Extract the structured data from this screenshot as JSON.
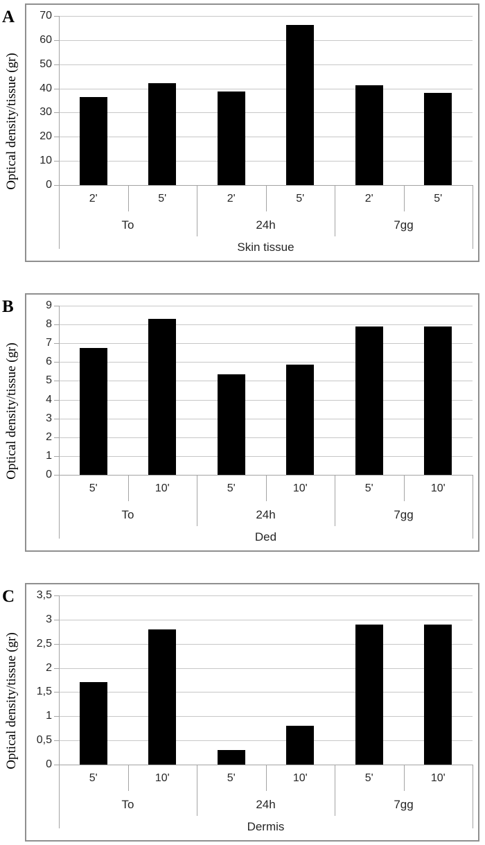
{
  "colors": {
    "background": "#ffffff",
    "bar_fill": "#000000",
    "gridline": "#c7c7c7",
    "axis_line": "#a3a3a3",
    "frame_border": "#8f8f8f",
    "text": "#262626"
  },
  "chart_data": [
    {
      "type": "bar",
      "panel_label": "A",
      "ylabel": "Optical density/tissue (gr)",
      "xlabel": "Skin tissue",
      "ylim": [
        0,
        70
      ],
      "ytick_step": 10,
      "grid": "horizontal",
      "legend": "none",
      "yticks": [
        {
          "label": "70",
          "value": 70
        },
        {
          "label": "60",
          "value": 60
        },
        {
          "label": "50",
          "value": 50
        },
        {
          "label": "40",
          "value": 40
        },
        {
          "label": "30",
          "value": 30
        },
        {
          "label": "20",
          "value": 20
        },
        {
          "label": "10",
          "value": 10
        },
        {
          "label": "0",
          "value": 0
        }
      ],
      "groups": [
        {
          "label": "To",
          "bars": [
            {
              "label": "2'",
              "value": 36.3
            },
            {
              "label": "5'",
              "value": 42.3
            }
          ]
        },
        {
          "label": "24h",
          "bars": [
            {
              "label": "2'",
              "value": 38.8
            },
            {
              "label": "5'",
              "value": 66.4
            }
          ]
        },
        {
          "label": "7gg",
          "bars": [
            {
              "label": "2'",
              "value": 41.3
            },
            {
              "label": "5'",
              "value": 38.1
            }
          ]
        }
      ]
    },
    {
      "type": "bar",
      "panel_label": "B",
      "ylabel": "Optical density/tissue (gr)",
      "xlabel": "Ded",
      "ylim": [
        0,
        9
      ],
      "ytick_step": 1,
      "grid": "horizontal",
      "legend": "none",
      "yticks": [
        {
          "label": "9",
          "value": 9
        },
        {
          "label": "8",
          "value": 8
        },
        {
          "label": "7",
          "value": 7
        },
        {
          "label": "6",
          "value": 6
        },
        {
          "label": "5",
          "value": 5
        },
        {
          "label": "4",
          "value": 4
        },
        {
          "label": "3",
          "value": 3
        },
        {
          "label": "2",
          "value": 2
        },
        {
          "label": "1",
          "value": 1
        },
        {
          "label": "0",
          "value": 0
        }
      ],
      "groups": [
        {
          "label": "To",
          "bars": [
            {
              "label": "5'",
              "value": 6.75
            },
            {
              "label": "10'",
              "value": 8.3
            }
          ]
        },
        {
          "label": "24h",
          "bars": [
            {
              "label": "5'",
              "value": 5.35
            },
            {
              "label": "10'",
              "value": 5.85
            }
          ]
        },
        {
          "label": "7gg",
          "bars": [
            {
              "label": "5'",
              "value": 7.9
            },
            {
              "label": "10'",
              "value": 7.9
            }
          ]
        }
      ]
    },
    {
      "type": "bar",
      "panel_label": "C",
      "ylabel": "Optical density/tissue (gr)",
      "xlabel": "Dermis",
      "ylim": [
        0,
        3.5
      ],
      "ytick_step": 0.5,
      "grid": "horizontal",
      "legend": "none",
      "yticks": [
        {
          "label": "3,5",
          "value": 3.5
        },
        {
          "label": "3",
          "value": 3
        },
        {
          "label": "2,5",
          "value": 2.5
        },
        {
          "label": "2",
          "value": 2
        },
        {
          "label": "1,5",
          "value": 1.5
        },
        {
          "label": "1",
          "value": 1
        },
        {
          "label": "0,5",
          "value": 0.5
        },
        {
          "label": "0",
          "value": 0
        }
      ],
      "groups": [
        {
          "label": "To",
          "bars": [
            {
              "label": "5'",
              "value": 1.7
            },
            {
              "label": "10'",
              "value": 2.8
            }
          ]
        },
        {
          "label": "24h",
          "bars": [
            {
              "label": "5'",
              "value": 0.3
            },
            {
              "label": "10'",
              "value": 0.8
            }
          ]
        },
        {
          "label": "7gg",
          "bars": [
            {
              "label": "5'",
              "value": 2.9
            },
            {
              "label": "10'",
              "value": 2.9
            }
          ]
        }
      ]
    }
  ]
}
